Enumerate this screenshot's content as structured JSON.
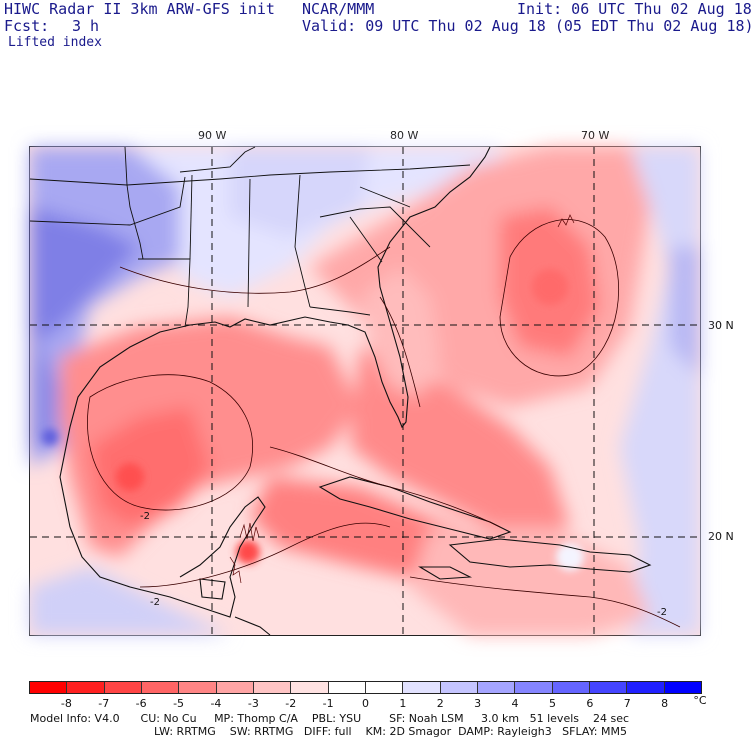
{
  "header": {
    "title": "HIWC Radar II 3km ARW-GFS init   NCAR/MMM",
    "init": "Init: 06 UTC Thu 02 Aug 18",
    "fcst_label": "Fcst:",
    "fcst_value": "3 h",
    "valid": "Valid: 09 UTC Thu 02 Aug 18 (05 EDT Thu 02 Aug 18)",
    "field": "Lifted index"
  },
  "map": {
    "lon_labels": [
      "90 W",
      "80 W",
      "70 W"
    ],
    "lat_labels": [
      "30 N",
      "20 N"
    ],
    "contour_labels": [
      "-2",
      "-2",
      "-2"
    ]
  },
  "colorbar": {
    "colors": [
      "#ff0000",
      "#ff2020",
      "#ff4545",
      "#ff6565",
      "#ff8585",
      "#ffa5a5",
      "#ffc5c5",
      "#ffe2e2",
      "#ffffff",
      "#ffffff",
      "#e2e2ff",
      "#c5c5ff",
      "#a5a5ff",
      "#8585ff",
      "#6565ff",
      "#4545ff",
      "#2020ff",
      "#0000ff"
    ],
    "labels": [
      "-8",
      "-7",
      "-6",
      "-5",
      "-4",
      "-3",
      "-2",
      "-1",
      "0",
      "1",
      "2",
      "3",
      "4",
      "5",
      "6",
      "7",
      "8"
    ],
    "unit": "°C"
  },
  "model_info": {
    "line1": "Model Info: V4.0      CU: No Cu     MP: Thomp C/A    PBL: YSU        SF: Noah LSM     3.0 km   51 levels    24 sec",
    "line2": "LW: RRTMG    SW: RRTMG   DIFF: full    KM: 2D Smagor  DAMP: Rayleigh3   SFLAY: MM5"
  }
}
